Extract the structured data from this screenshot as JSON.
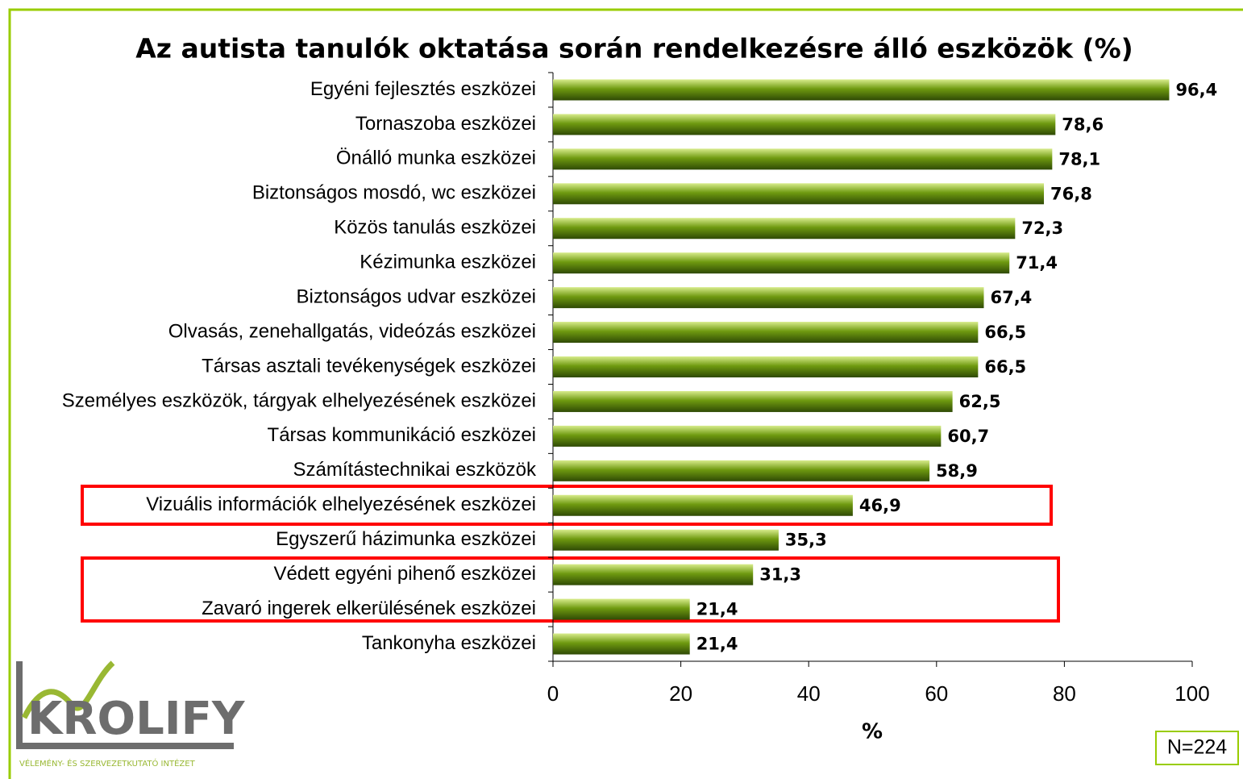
{
  "chart_data": {
    "type": "bar",
    "orientation": "horizontal",
    "title": "Az autista tanulók oktatása során rendelkezésre álló eszközök (%)",
    "categories": [
      "Egyéni fejlesztés eszközei",
      "Tornaszoba eszközei",
      "Önálló munka eszközei",
      "Biztonságos mosdó, wc eszközei",
      "Közös tanulás eszközei",
      "Kézimunka eszközei",
      "Biztonságos udvar eszközei",
      "Olvasás, zenehallgatás, videózás eszközei",
      "Társas asztali tevékenységek eszközei",
      "Személyes eszközök, tárgyak elhelyezésének eszközei",
      "Társas kommunikáció eszközei",
      "Számítástechnikai eszközök",
      "Vizuális információk elhelyezésének eszközei",
      "Egyszerű házimunka eszközei",
      "Védett egyéni pihenő eszközei",
      "Zavaró ingerek elkerülésének eszközei",
      "Tankonyha eszközei"
    ],
    "values": [
      96.4,
      78.6,
      78.1,
      76.8,
      72.3,
      71.4,
      67.4,
      66.5,
      66.5,
      62.5,
      60.7,
      58.9,
      46.9,
      35.3,
      31.3,
      21.4,
      21.4
    ],
    "value_labels": [
      "96,4",
      "78,6",
      "78,1",
      "76,8",
      "72,3",
      "71,4",
      "67,4",
      "66,5",
      "66,5",
      "62,5",
      "60,7",
      "58,9",
      "46,9",
      "35,3",
      "31,3",
      "21,4",
      "21,4"
    ],
    "color": "#6f9a10",
    "xlabel": "%",
    "xlim": [
      0,
      100
    ],
    "xticks": [
      0,
      20,
      40,
      60,
      80,
      100
    ],
    "annotation": "N=224"
  },
  "logo": {
    "name": "KROLIFY",
    "tagline": "VÉLEMÉNY- ÉS SZERVEZETKUTATÓ INTÉZET"
  }
}
